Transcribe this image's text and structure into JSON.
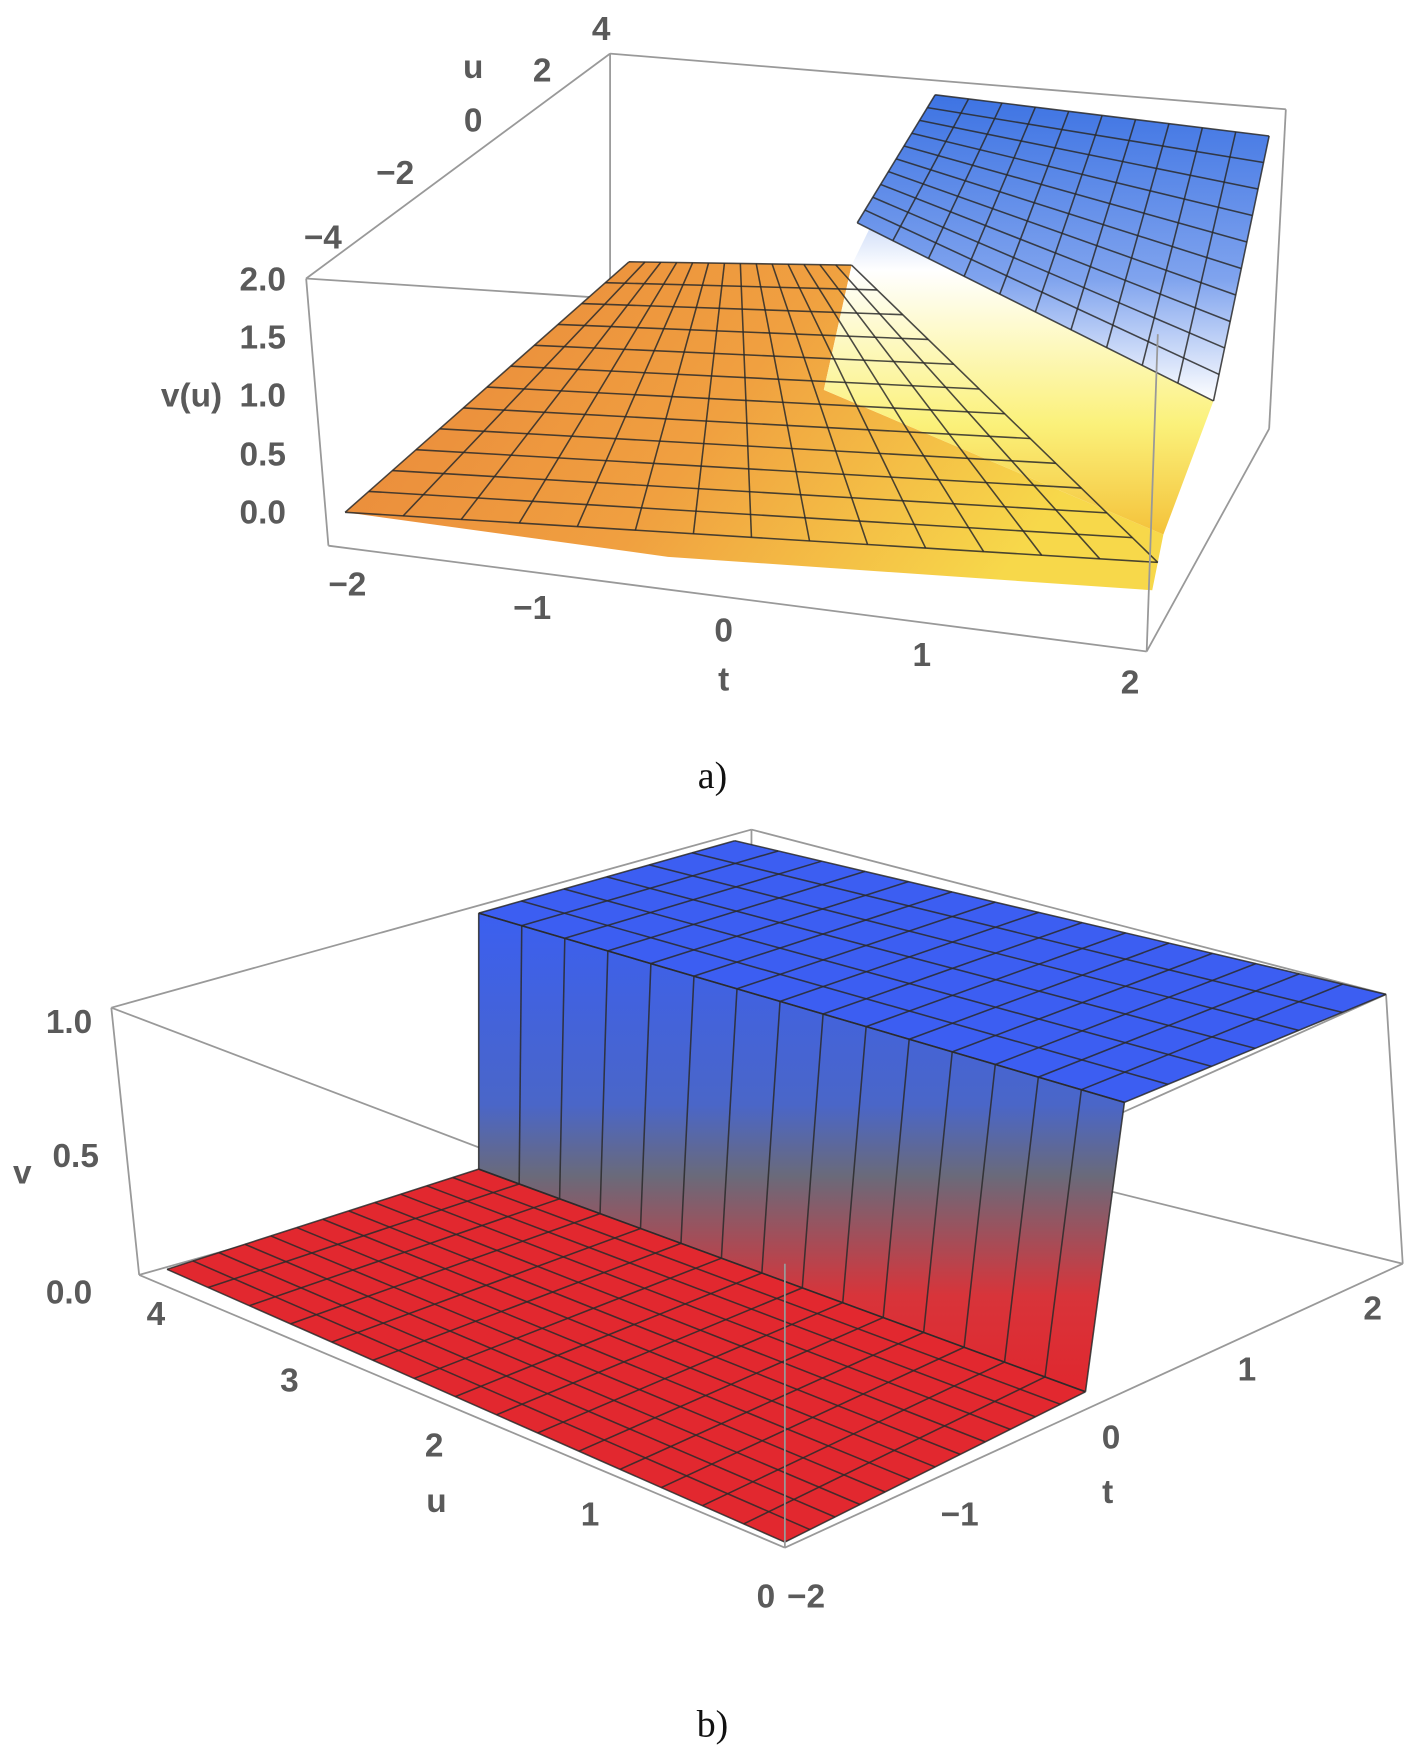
{
  "panels": [
    {
      "caption": "a)",
      "z_label": "v(u)",
      "z_ticks": [
        "2.0",
        "1.5",
        "1.0",
        "0.5",
        "0.0"
      ],
      "u_label": "u",
      "u_ticks": [
        "4",
        "2",
        "0",
        "−2",
        "−4"
      ],
      "t_label": "t",
      "t_ticks": [
        "−2",
        "−1",
        "0",
        "1",
        "2"
      ]
    },
    {
      "caption": "b)",
      "z_label": "v",
      "z_ticks": [
        "1.0",
        "0.5",
        "0.0"
      ],
      "u_label": "u",
      "u_ticks": [
        "4",
        "3",
        "2",
        "1",
        "0"
      ],
      "t_label": "t",
      "t_ticks": [
        "−2",
        "−1",
        "0",
        "1",
        "2"
      ]
    }
  ]
}
